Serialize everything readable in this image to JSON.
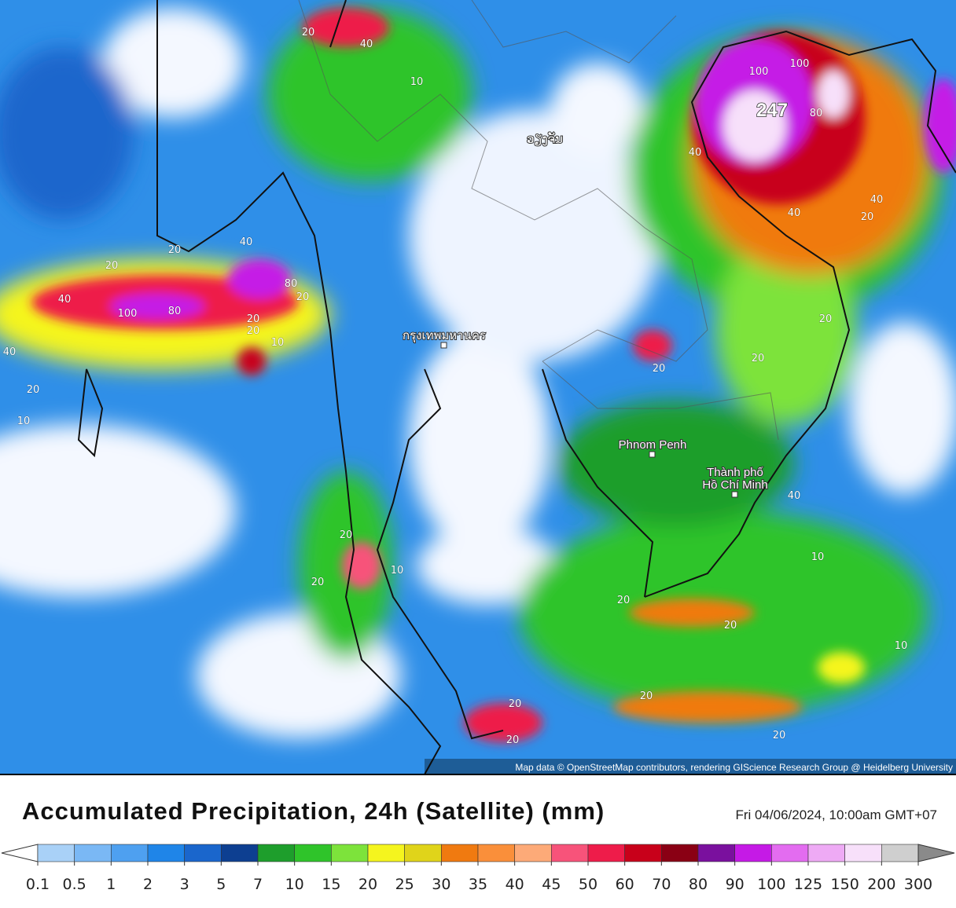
{
  "map": {
    "places": [
      {
        "label": "Phnom Penh"
      },
      {
        "label": "Thành phố"
      },
      {
        "label": "Hồ Chí Minh"
      },
      {
        "label": "กรุงเทพมหานคร"
      },
      {
        "label": "ວຽງຈັນ"
      }
    ],
    "max_label": "247",
    "contour_labels": [
      20,
      40,
      10,
      20,
      40,
      20,
      40,
      100,
      80,
      80,
      20,
      20,
      20,
      10,
      20,
      40,
      10,
      100,
      100,
      80,
      40,
      40,
      20,
      40,
      20,
      20,
      20,
      20,
      20,
      20,
      20,
      20,
      10,
      20,
      20,
      40,
      20,
      10,
      10
    ],
    "attribution": "Map data © OpenStreetMap contributors, rendering GIScience Research Group @ Heidelberg University"
  },
  "legend": {
    "title": "Accumulated Precipitation, 24h (Satellite) (mm)",
    "timestamp": "Fri 04/06/2024, 10:00am GMT+07",
    "ticks": [
      0.1,
      0.5,
      1,
      2,
      3,
      5,
      7,
      10,
      15,
      20,
      25,
      30,
      35,
      40,
      45,
      50,
      60,
      70,
      80,
      90,
      100,
      125,
      150,
      200,
      300
    ],
    "below_color": "#ffffff",
    "above_color": "#8a8a8a",
    "colors": [
      "#a9d1f7",
      "#7ab8f5",
      "#4ea0f0",
      "#1f85e8",
      "#1a66cc",
      "#0d3f91",
      "#1e9e2c",
      "#2fc42a",
      "#7de33b",
      "#f5f51e",
      "#e0d41a",
      "#f07a10",
      "#fa8f3a",
      "#fdaa78",
      "#f7537a",
      "#ee1c4a",
      "#c8001a",
      "#8a0014",
      "#7a109e",
      "#c51ae6",
      "#e36cf0",
      "#eeaaf5",
      "#f7e0fa",
      "#cfcfcf"
    ]
  }
}
